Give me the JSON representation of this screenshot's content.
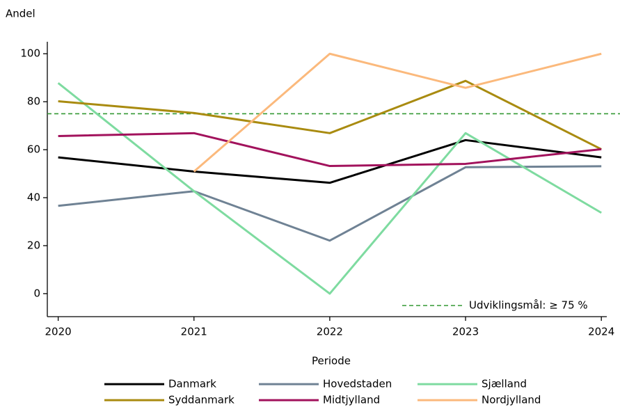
{
  "chart_data": {
    "type": "line",
    "y_label": "Andel",
    "x_label": "Periode",
    "x": [
      2020,
      2021,
      2022,
      2023,
      2024
    ],
    "xlim": [
      2019.92,
      2024.04
    ],
    "xticks": [
      2020,
      2021,
      2022,
      2023,
      2024
    ],
    "ylim": [
      -9.6,
      105
    ],
    "yticks": [
      0,
      20,
      40,
      60,
      80,
      100
    ],
    "grid": false,
    "series": [
      {
        "name": "Danmark",
        "color": "#000000",
        "values": [
          56.8,
          50.9,
          46.2,
          64.0,
          56.8
        ]
      },
      {
        "name": "Hovedstaden",
        "color": "#6f8294",
        "values": [
          36.6,
          42.7,
          22.1,
          52.7,
          53.1
        ]
      },
      {
        "name": "Sjælland",
        "color": "#7edba0",
        "values": [
          87.8,
          42.7,
          0,
          66.9,
          33.7
        ]
      },
      {
        "name": "Syddanmark",
        "color": "#a98b10",
        "values": [
          80.2,
          75.3,
          66.9,
          88.7,
          60.2
        ]
      },
      {
        "name": "Midtjylland",
        "color": "#a2125c",
        "values": [
          65.7,
          66.9,
          53.2,
          54.1,
          60.2
        ]
      },
      {
        "name": "Nordjylland",
        "color": "#fbb97c",
        "values": [
          null,
          50.9,
          100,
          85.8,
          100
        ]
      }
    ],
    "reference_line": {
      "value": 75,
      "label": "Udviklingsmål: ≥ 75 %",
      "color": "#339933"
    },
    "legend": "bottom"
  }
}
